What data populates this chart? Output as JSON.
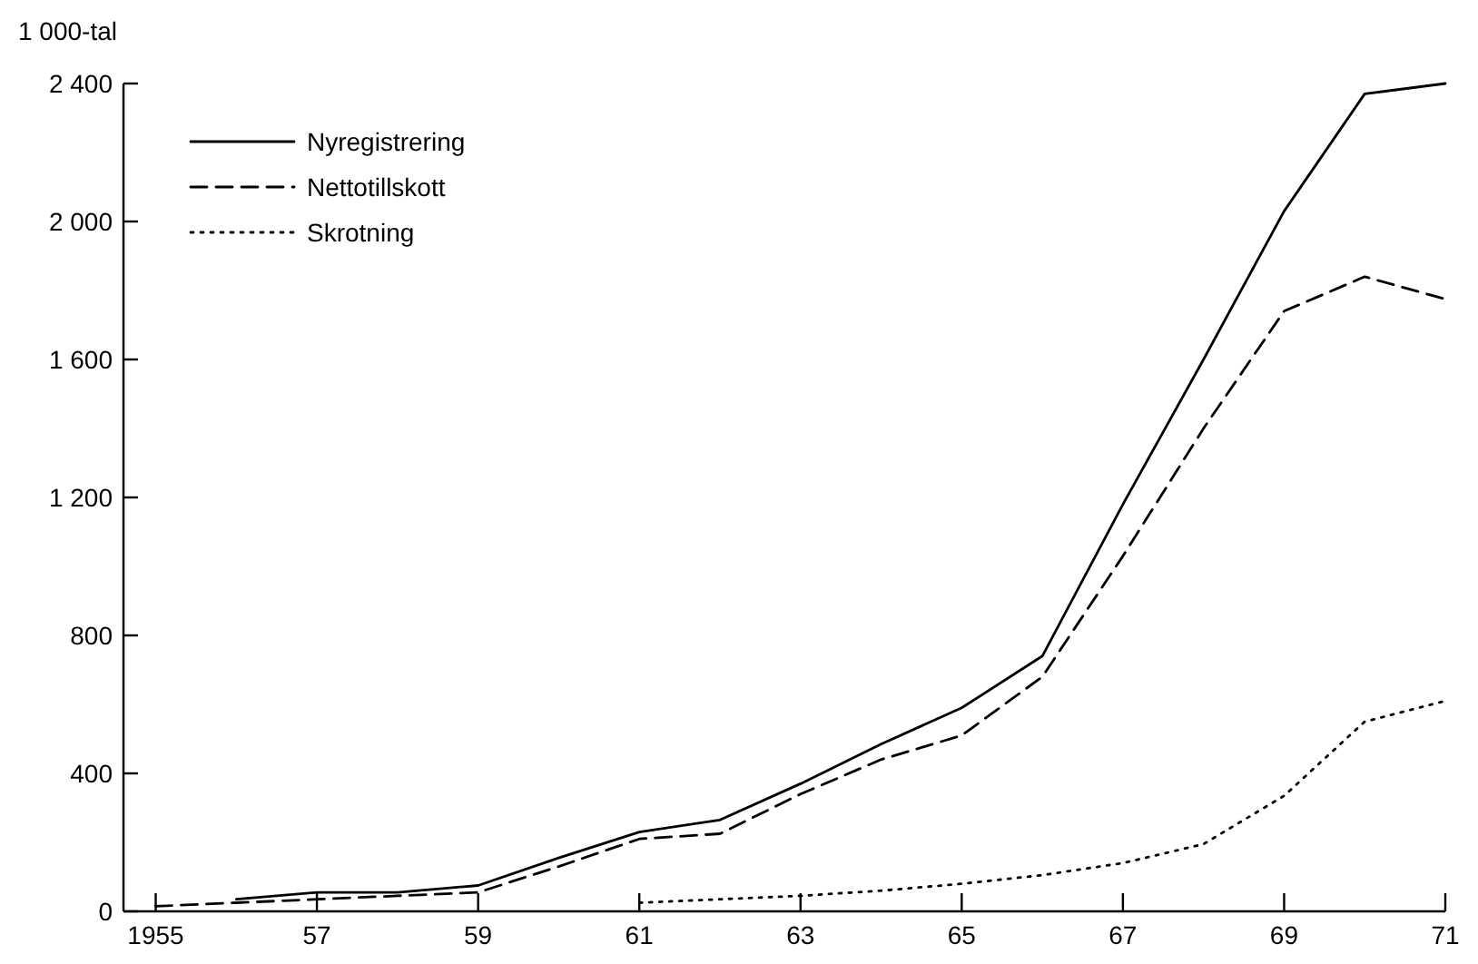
{
  "chart_data": {
    "type": "line",
    "ylabel": "1 000-tal",
    "xlim": [
      1954.6,
      1971
    ],
    "ylim": [
      0,
      2400
    ],
    "xticks": [
      {
        "value": 1955,
        "label": "1955"
      },
      {
        "value": 1957,
        "label": "57"
      },
      {
        "value": 1959,
        "label": "59"
      },
      {
        "value": 1961,
        "label": "61"
      },
      {
        "value": 1963,
        "label": "63"
      },
      {
        "value": 1965,
        "label": "65"
      },
      {
        "value": 1967,
        "label": "67"
      },
      {
        "value": 1969,
        "label": "69"
      },
      {
        "value": 1971,
        "label": "71"
      }
    ],
    "yticks": [
      0,
      400,
      800,
      {
        "value": 1200,
        "label": "1 200"
      },
      {
        "value": 1600,
        "label": "1 600"
      },
      {
        "value": 2000,
        "label": "2 000"
      },
      {
        "value": 2400,
        "label": "2 400"
      }
    ],
    "grid": false,
    "legend": "top left",
    "marker": "none",
    "series": [
      {
        "name": "Nyregistrering",
        "color": "#000000",
        "line_style": "solid",
        "x": [
          1956,
          1957,
          1958,
          1959,
          1960,
          1961,
          1962,
          1963,
          1964,
          1965,
          1966,
          1967,
          1968,
          1969,
          1970,
          1971
        ],
        "values": [
          35,
          55,
          55,
          75,
          155,
          230,
          265,
          370,
          485,
          590,
          740,
          1180,
          1600,
          2030,
          2370,
          2400
        ]
      },
      {
        "name": "Nettotillskott",
        "color": "#000000",
        "line_style": "dashed",
        "x": [
          1955,
          1956,
          1957,
          1958,
          1959,
          1960,
          1961,
          1962,
          1963,
          1964,
          1965,
          1966,
          1967,
          1968,
          1969,
          1970,
          1971
        ],
        "values": [
          15,
          25,
          35,
          45,
          55,
          130,
          210,
          225,
          340,
          440,
          510,
          680,
          1030,
          1400,
          1740,
          1840,
          1775
        ]
      },
      {
        "name": "Skrotning",
        "color": "#000000",
        "line_style": "dotted",
        "x": [
          1961,
          1962,
          1963,
          1964,
          1965,
          1966,
          1967,
          1968,
          1969,
          1970,
          1971
        ],
        "values": [
          25,
          35,
          45,
          60,
          80,
          105,
          140,
          195,
          335,
          550,
          610
        ]
      }
    ]
  }
}
